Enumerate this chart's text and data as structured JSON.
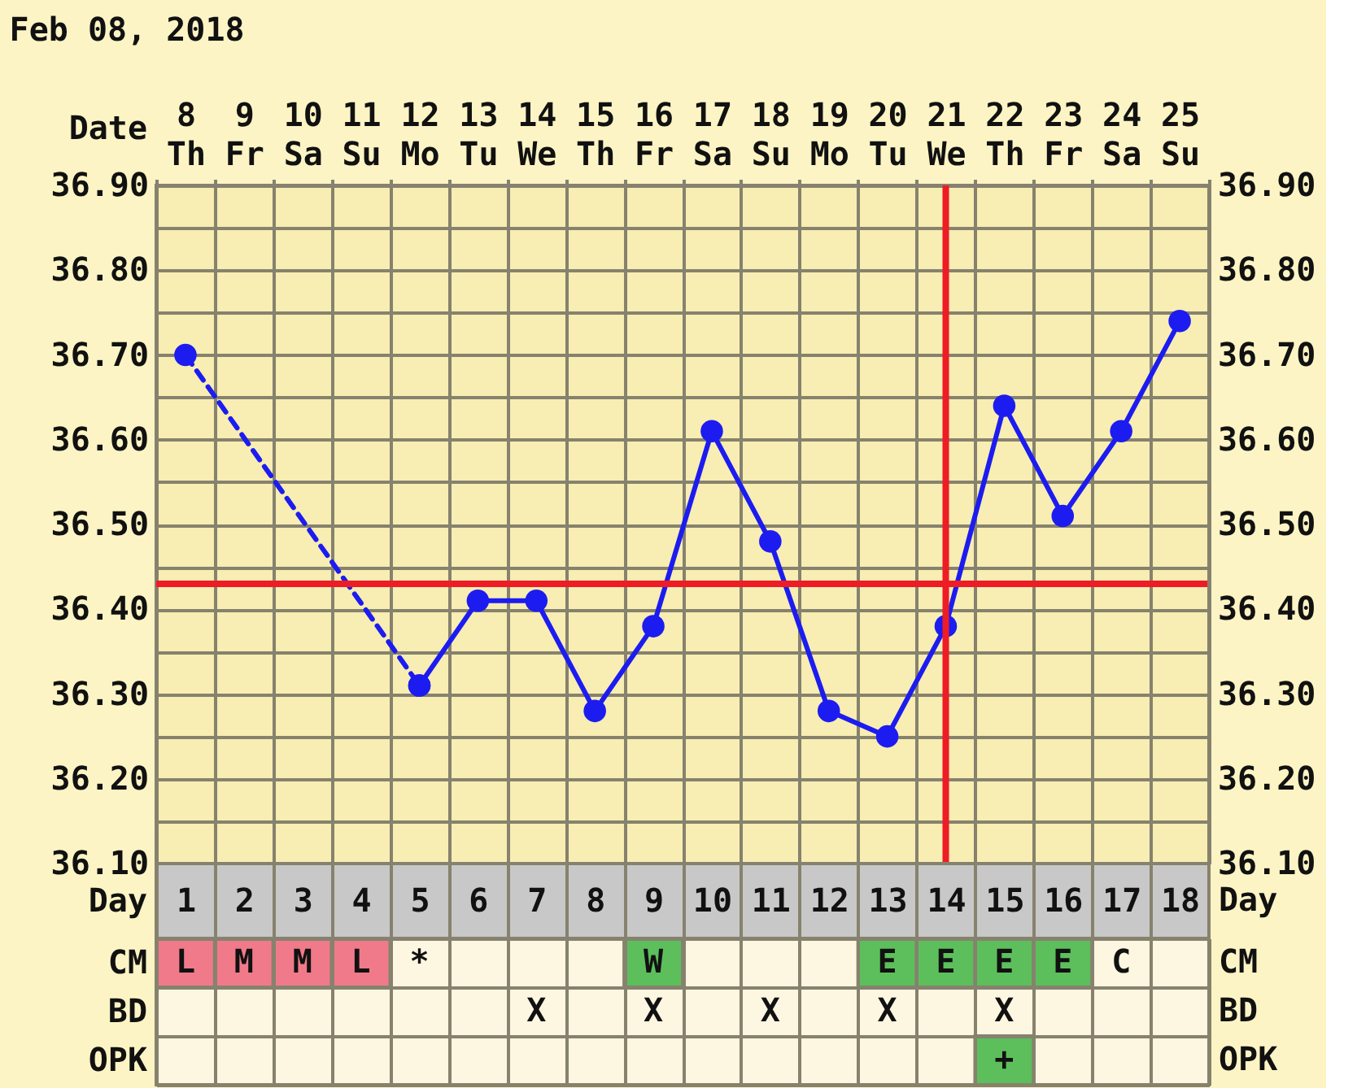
{
  "chart_data": [
    {
      "type": "line",
      "title": "Feb 08, 2018",
      "xlabel": "Date",
      "categories": [
        "8\nTh",
        "9\nFr",
        "10\nSa",
        "11\nSu",
        "12\nMo",
        "13\nTu",
        "14\nWe",
        "15\nTh",
        "16\nFr",
        "17\nSa",
        "18\nSu",
        "19\nMo",
        "20\nTu",
        "21\nWe",
        "22\nTh",
        "23\nFr",
        "24\nSa",
        "25\nSu"
      ],
      "series": [
        {
          "color": "#1c1cf0",
          "values": [
            null,
            null,
            null,
            null,
            36.31,
            36.41,
            36.41,
            36.28,
            36.38,
            36.61,
            36.48,
            36.28,
            36.25,
            36.38,
            36.64,
            36.51,
            36.61,
            36.74
          ]
        },
        {
          "color": "#1c1cf0",
          "x": [
            "8\nTh",
            "12\nMo"
          ],
          "values": [
            36.7,
            36.31
          ],
          "line_style": "dashed"
        }
      ],
      "ylim": [
        36.1,
        36.9
      ],
      "yticks": [
        {
          "value": 36.1,
          "label": "36.10"
        },
        {
          "value": 36.15,
          "label": null
        },
        {
          "value": 36.2,
          "label": "36.20"
        },
        {
          "value": 36.25,
          "label": null
        },
        {
          "value": 36.3,
          "label": "36.30"
        },
        {
          "value": 36.35,
          "label": null
        },
        {
          "value": 36.4,
          "label": "36.40"
        },
        {
          "value": 36.45,
          "label": null
        },
        {
          "value": 36.5,
          "label": "36.50"
        },
        {
          "value": 36.55,
          "label": null
        },
        {
          "value": 36.6,
          "label": "36.60"
        },
        {
          "value": 36.65,
          "label": null
        },
        {
          "value": 36.7,
          "label": "36.70"
        },
        {
          "value": 36.75,
          "label": null
        },
        {
          "value": 36.8,
          "label": "36.80"
        },
        {
          "value": 36.85,
          "label": null
        },
        {
          "value": 36.9,
          "label": "36.90"
        }
      ],
      "y2lim": [
        36.1,
        36.9
      ],
      "y2ticks": [
        {
          "value": 36.1,
          "label": "36.10"
        },
        {
          "value": 36.15,
          "label": null
        },
        {
          "value": 36.2,
          "label": "36.20"
        },
        {
          "value": 36.25,
          "label": null
        },
        {
          "value": 36.3,
          "label": "36.30"
        },
        {
          "value": 36.35,
          "label": null
        },
        {
          "value": 36.4,
          "label": "36.40"
        },
        {
          "value": 36.45,
          "label": null
        },
        {
          "value": 36.5,
          "label": "36.50"
        },
        {
          "value": 36.55,
          "label": null
        },
        {
          "value": 36.6,
          "label": "36.60"
        },
        {
          "value": 36.65,
          "label": null
        },
        {
          "value": 36.7,
          "label": "36.70"
        },
        {
          "value": 36.75,
          "label": null
        },
        {
          "value": 36.8,
          "label": "36.80"
        },
        {
          "value": 36.85,
          "label": null
        },
        {
          "value": 36.9,
          "label": "36.90"
        }
      ],
      "x2label": "Day",
      "x2lim": [
        0.5,
        18.5
      ],
      "x2ticks": [
        1,
        2,
        3,
        4,
        5,
        6,
        7,
        8,
        9,
        10,
        11,
        12,
        13,
        14,
        15,
        16,
        17,
        18
      ],
      "ref_lines": [
        {
          "axis": "y",
          "value": 36.43,
          "color": "#ee1c24"
        },
        {
          "axis": "x",
          "value": "21\nWe",
          "color": "#ee1c24"
        }
      ],
      "grid": true,
      "marker": "circle",
      "line_style": "solid"
    },
    {
      "type": "other",
      "y_categories": [
        "CM",
        "BD",
        "OPK"
      ],
      "y2_categories": [
        "CM",
        "BD",
        "OPK"
      ],
      "cell_labels": [
        [
          "L",
          "M",
          "M",
          "L",
          "*",
          null,
          null,
          null,
          "W",
          null,
          null,
          null,
          "E",
          "E",
          "E",
          "E",
          "C",
          null
        ],
        [
          null,
          null,
          null,
          null,
          null,
          null,
          "X",
          null,
          "X",
          null,
          "X",
          null,
          "X",
          null,
          "X",
          null,
          null,
          null
        ],
        [
          null,
          null,
          null,
          null,
          null,
          null,
          null,
          null,
          null,
          null,
          null,
          null,
          null,
          null,
          "+",
          null,
          null,
          null
        ]
      ],
      "colors": [
        [
          "#f07a8a",
          "#f07a8a",
          "#f07a8a",
          "#f07a8a",
          null,
          null,
          null,
          null,
          "#5cbf5c",
          null,
          null,
          null,
          "#5cbf5c",
          "#5cbf5c",
          "#5cbf5c",
          "#5cbf5c",
          null,
          null
        ],
        [
          null,
          null,
          null,
          null,
          null,
          null,
          null,
          null,
          null,
          null,
          null,
          null,
          null,
          null,
          null,
          null,
          null,
          null
        ],
        [
          null,
          null,
          null,
          null,
          null,
          null,
          null,
          null,
          null,
          null,
          null,
          null,
          null,
          null,
          "#5cbf5c",
          null,
          null,
          null
        ]
      ]
    }
  ]
}
